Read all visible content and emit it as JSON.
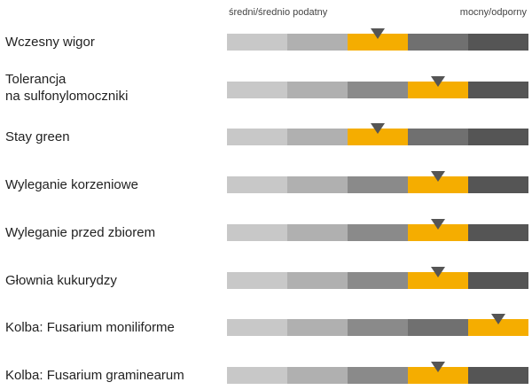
{
  "chart_data": {
    "type": "rating-scale",
    "scale": {
      "left_label": "średni/średnio podatny",
      "right_label": "mocny/odporny",
      "levels": 5
    },
    "colors": {
      "segments": [
        "#c8c8c8",
        "#b0b0b0",
        "#8a8a8a",
        "#707070",
        "#555555"
      ],
      "highlight": "#f5ad00",
      "marker": "#555555"
    },
    "rows": [
      {
        "label": [
          "Wczesny wigor"
        ],
        "value": 3
      },
      {
        "label": [
          "Tolerancja",
          "na sulfonylomoczniki"
        ],
        "value": 4
      },
      {
        "label": [
          "Stay green"
        ],
        "value": 3
      },
      {
        "label": [
          "Wyleganie korzeniowe"
        ],
        "value": 4
      },
      {
        "label": [
          "Wyleganie przed zbiorem"
        ],
        "value": 4
      },
      {
        "label": [
          "Głownia kukurydzy"
        ],
        "value": 4
      },
      {
        "label": [
          "Kolba: Fusarium moniliforme"
        ],
        "value": 5
      },
      {
        "label": [
          "Kolba: Fusarium graminearum"
        ],
        "value": 4
      }
    ]
  }
}
